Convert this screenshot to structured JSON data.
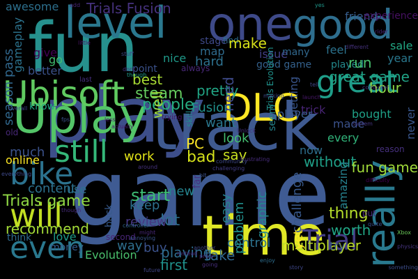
{
  "words": [
    {
      "text": "game",
      "color": "#3f5b93"
    },
    {
      "text": "play",
      "color": "#3d4e8a"
    },
    {
      "text": "fun",
      "color": "#26918d"
    },
    {
      "text": "track",
      "color": "#3f5a90"
    },
    {
      "text": "time",
      "color": "#e0e826"
    },
    {
      "text": "Uplay",
      "color": "#54c568"
    },
    {
      "text": "one",
      "color": "#3e4a89"
    },
    {
      "text": "level",
      "color": "#2a788e"
    },
    {
      "text": "good",
      "color": "#2e6e8e"
    },
    {
      "text": "really",
      "color": "#29798e"
    },
    {
      "text": "Ubisoft",
      "color": "#60ca60"
    },
    {
      "text": "DLC",
      "color": "#fde725"
    },
    {
      "text": "great",
      "color": "#1f9e89"
    },
    {
      "text": "still",
      "color": "#35b779"
    },
    {
      "text": "bike",
      "color": "#2c728e"
    },
    {
      "text": "will",
      "color": "#c2df23"
    },
    {
      "text": "even",
      "color": "#2a788e"
    },
    {
      "text": "Trial",
      "color": "#433d84"
    },
    {
      "text": "multiplayer",
      "color": "#bddf26"
    },
    {
      "text": "control",
      "color": "#2c728e"
    },
    {
      "text": "Trials Fusion",
      "color": "#46327e"
    },
    {
      "text": "Trials game",
      "color": "#8fd744"
    },
    {
      "text": "content",
      "color": "#2c718e"
    },
    {
      "text": "recommend",
      "color": "#a2da37"
    },
    {
      "text": "steam",
      "color": "#65cb5e"
    },
    {
      "text": "people",
      "color": "#27ad81"
    },
    {
      "text": "Fusion",
      "color": "#21918c"
    },
    {
      "text": "PC",
      "color": "#fde725"
    },
    {
      "text": "bad",
      "color": "#d5e21a"
    },
    {
      "text": "work",
      "color": "#e2e418"
    },
    {
      "text": "start",
      "color": "#3dbc74"
    },
    {
      "text": "keep",
      "color": "#2d708e"
    },
    {
      "text": "lot",
      "color": "#2f6c8e"
    },
    {
      "text": "review",
      "color": "#453781"
    },
    {
      "text": "new",
      "color": "#25838e"
    },
    {
      "text": "way",
      "color": "#2e6f8e"
    },
    {
      "text": "buy",
      "color": "#3b528b"
    },
    {
      "text": "playing",
      "color": "#2e6d8e"
    },
    {
      "text": "first",
      "color": "#20928c"
    },
    {
      "text": "take",
      "color": "#31688e"
    },
    {
      "text": "graphic",
      "color": "#24878e"
    },
    {
      "text": "problem",
      "color": "#21908d"
    },
    {
      "text": "easy",
      "color": "#26828e"
    },
    {
      "text": "thing",
      "color": "#b5de2b"
    },
    {
      "text": "worth",
      "color": "#21a685"
    },
    {
      "text": "try",
      "color": "#3a548c"
    },
    {
      "text": "challenge",
      "color": "#38598c"
    },
    {
      "text": "say",
      "color": "#c8e020"
    },
    {
      "text": "look",
      "color": "#44bf70"
    },
    {
      "text": "trick",
      "color": "#482475"
    },
    {
      "text": "want",
      "color": "#2a778e"
    },
    {
      "text": "pretty",
      "color": "#21a585"
    },
    {
      "text": "best",
      "color": "#a8db34"
    },
    {
      "text": "point",
      "color": "#3b528b"
    },
    {
      "text": "need",
      "color": "#3e4a89"
    },
    {
      "text": "hard",
      "color": "#2d708e"
    },
    {
      "text": "nice",
      "color": "#1f9a8a"
    },
    {
      "text": "map",
      "color": "#2f6b8e"
    },
    {
      "text": "stage",
      "color": "#3e4989"
    },
    {
      "text": "find",
      "color": "#2e6e8e"
    },
    {
      "text": "make",
      "color": "#d8e219"
    },
    {
      "text": "issue",
      "color": "#424086"
    },
    {
      "text": "many",
      "color": "#31688e"
    },
    {
      "text": "good game",
      "color": "#34618d"
    },
    {
      "text": "well",
      "color": "#9fda3a"
    },
    {
      "text": "better",
      "color": "#3b528b"
    },
    {
      "text": "gameplay",
      "color": "#2c738e"
    },
    {
      "text": "season pass",
      "color": "#31688e"
    },
    {
      "text": "awesome",
      "color": "#2d708e"
    },
    {
      "text": "give",
      "color": "#440154"
    },
    {
      "text": "go",
      "color": "#42be71"
    },
    {
      "text": "know",
      "color": "#22a884"
    },
    {
      "text": "much",
      "color": "#3b528b"
    },
    {
      "text": "online",
      "color": "#fde725"
    },
    {
      "text": "use",
      "color": "#2c738e"
    },
    {
      "text": "love",
      "color": "#1e9c89"
    },
    {
      "text": "think",
      "color": "#2f6b8e"
    },
    {
      "text": "money",
      "color": "#365c8d"
    },
    {
      "text": "back",
      "color": "#375a8c"
    },
    {
      "text": "Evolution",
      "color": "#4ac16d"
    },
    {
      "text": "played",
      "color": "#238a8d"
    },
    {
      "text": "great game",
      "color": "#20a386"
    },
    {
      "text": "feel",
      "color": "#2c738e"
    },
    {
      "text": "run",
      "color": "#48c16e"
    },
    {
      "text": "hour",
      "color": "#8bd646"
    },
    {
      "text": "bought",
      "color": "#1fa187"
    },
    {
      "text": "made",
      "color": "#3b528b"
    },
    {
      "text": "every",
      "color": "#31b57b"
    },
    {
      "text": "now",
      "color": "#2e6e8e"
    },
    {
      "text": "without",
      "color": "#1fa088"
    },
    {
      "text": "player",
      "color": "#375b8d"
    },
    {
      "text": "getting",
      "color": "#39558c"
    },
    {
      "text": "seem",
      "color": "#25848e"
    },
    {
      "text": "Trials Evolution",
      "color": "#20928c"
    },
    {
      "text": "never",
      "color": "#39568c"
    },
    {
      "text": "fun game",
      "color": "#a0da39"
    },
    {
      "text": "amazing",
      "color": "#26818e"
    },
    {
      "text": "yet",
      "color": "#fde725"
    },
    {
      "text": "sale",
      "color": "#22a884"
    },
    {
      "text": "year",
      "color": "#2a788e"
    },
    {
      "text": "friend",
      "color": "#365d8d"
    },
    {
      "text": "experience",
      "color": "#471063"
    },
    {
      "text": "frustrating",
      "color": "#472d7b"
    },
    {
      "text": "community",
      "color": "#3e4989"
    },
    {
      "text": "challenging",
      "color": "#433e85"
    },
    {
      "text": "difficulty",
      "color": "#440154"
    },
    {
      "text": "Xbox",
      "color": "#6ccd5a"
    },
    {
      "text": "always",
      "color": "#482878"
    },
    {
      "text": "skill",
      "color": "#238a8d"
    },
    {
      "text": "second",
      "color": "#482576"
    },
    {
      "text": "instead",
      "color": "#482677"
    },
    {
      "text": "price",
      "color": "#481c6e"
    },
    {
      "text": "annoying",
      "color": "#3a548c"
    },
    {
      "text": "controller",
      "color": "#31688e"
    },
    {
      "text": "enjoy",
      "color": "#2e6e8e"
    },
    {
      "text": "launch",
      "color": "#48186a"
    },
    {
      "text": "different",
      "color": "#46327e"
    },
    {
      "text": "last",
      "color": "#46307e"
    },
    {
      "text": "might",
      "color": "#482979"
    },
    {
      "text": "stuff",
      "color": "#3e4989"
    },
    {
      "text": "dont",
      "color": "#46337f"
    },
    {
      "text": "though",
      "color": "#1f9e89"
    },
    {
      "text": "far",
      "color": "#46327e"
    },
    {
      "text": "old",
      "color": "#482878"
    },
    {
      "text": "trying",
      "color": "#471365"
    },
    {
      "text": "little",
      "color": "#481467"
    },
    {
      "text": "add",
      "color": "#482475"
    },
    {
      "text": "yes",
      "color": "#1f988b"
    },
    {
      "text": "rider",
      "color": "#482374"
    },
    {
      "text": "put",
      "color": "#482878"
    },
    {
      "text": "quite",
      "color": "#3b518b"
    },
    {
      "text": "reason",
      "color": "#46307e"
    },
    {
      "text": "another",
      "color": "#3f4889"
    },
    {
      "text": "going",
      "color": "#472f7d"
    },
    {
      "text": "future",
      "color": "#404688"
    },
    {
      "text": "something",
      "color": "#3d4d8a"
    },
    {
      "text": "everything",
      "color": "#3e4989"
    },
    {
      "text": "system",
      "color": "#453882"
    },
    {
      "text": "physics",
      "color": "#463480"
    },
    {
      "text": "computer",
      "color": "#443a83"
    },
    {
      "text": "tell",
      "color": "#414487"
    },
    {
      "text": "actually",
      "color": "#481769"
    },
    {
      "text": "story",
      "color": "#3f4788"
    },
    {
      "text": "fps",
      "color": "#3b528b"
    },
    {
      "text": "overall",
      "color": "#404588"
    },
    {
      "text": "though",
      "color": "#472c7a"
    },
    {
      "text": "making",
      "color": "#3e4a89"
    },
    {
      "text": "around",
      "color": "#46337f"
    },
    {
      "text": "less",
      "color": "#48186a"
    },
    {
      "text": "Unlock",
      "color": "#46317e"
    },
    {
      "text": "bit",
      "color": "#3b528b"
    }
  ]
}
